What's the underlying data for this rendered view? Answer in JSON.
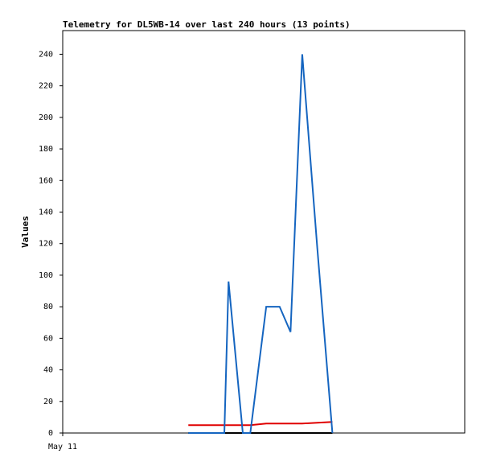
{
  "chart_data": {
    "type": "line",
    "title": "Telemetry for DL5WB-14 over last 240 hours (13 points)",
    "y_label": "Values",
    "x": [
      75,
      86,
      91,
      96.5,
      99,
      107.5,
      112,
      121.5,
      129.5,
      136,
      143,
      152,
      161
    ],
    "series": [
      {
        "color": "#000000",
        "values": [
          0,
          0,
          0,
          0,
          0,
          0,
          0,
          0,
          0,
          0,
          0,
          0,
          0
        ]
      },
      {
        "color": "#e00000",
        "values": [
          5,
          5,
          5,
          5,
          5,
          5,
          5,
          6,
          6,
          6,
          6,
          6.5,
          7
        ]
      },
      {
        "color": "#1565c0",
        "values": [
          0,
          0,
          0,
          0,
          96,
          0,
          0,
          80,
          80,
          64,
          240,
          117,
          0
        ]
      }
    ],
    "xlim": [
      0,
      240
    ],
    "xticks": [
      {
        "value": 0,
        "label": "May 11"
      }
    ],
    "ylim": [
      0,
      255
    ],
    "yticks": [
      0,
      20,
      40,
      60,
      80,
      100,
      120,
      140,
      160,
      180,
      200,
      220,
      240
    ]
  }
}
